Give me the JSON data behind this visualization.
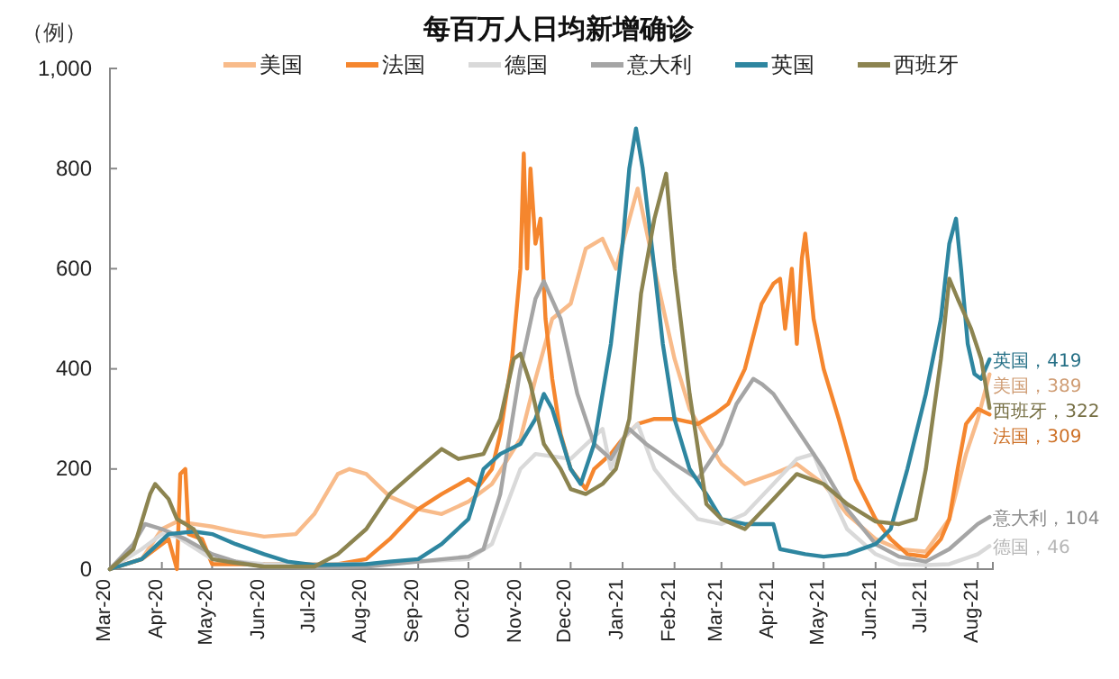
{
  "chart_data": {
    "type": "line",
    "title": "每百万人日均新增确诊",
    "ylabel": "（例）",
    "legend": "top",
    "grid": false,
    "line_style": "solid",
    "marker": "none",
    "xlim": [
      "2020-03-01",
      "2021-08-10"
    ],
    "xticks": [
      {
        "value": "2020-03-01",
        "label": "Mar-20"
      },
      {
        "value": "2020-04-01",
        "label": "Apr-20"
      },
      {
        "value": "2020-05-01",
        "label": "May-20"
      },
      {
        "value": "2020-06-01",
        "label": "Jun-20"
      },
      {
        "value": "2020-07-01",
        "label": "Jul-20"
      },
      {
        "value": "2020-08-01",
        "label": "Aug-20"
      },
      {
        "value": "2020-09-01",
        "label": "Sep-20"
      },
      {
        "value": "2020-10-01",
        "label": "Oct-20"
      },
      {
        "value": "2020-11-01",
        "label": "Nov-20"
      },
      {
        "value": "2020-12-01",
        "label": "Dec-20"
      },
      {
        "value": "2021-01-01",
        "label": "Jan-21"
      },
      {
        "value": "2021-02-01",
        "label": "Feb-21"
      },
      {
        "value": "2021-03-01",
        "label": "Mar-21"
      },
      {
        "value": "2021-04-01",
        "label": "Apr-21"
      },
      {
        "value": "2021-05-01",
        "label": "May-21"
      },
      {
        "value": "2021-06-01",
        "label": "Jun-21"
      },
      {
        "value": "2021-07-01",
        "label": "Jul-21"
      },
      {
        "value": "2021-08-01",
        "label": "Aug-21"
      }
    ],
    "ylim": [
      0,
      1000
    ],
    "yticks": [
      0,
      200,
      400,
      600,
      800,
      {
        "value": 1000,
        "label": "1,000"
      }
    ],
    "series": [
      {
        "name": "美国",
        "color": "#f8bb8a",
        "x": [
          "2020-03-01",
          "2020-03-20",
          "2020-04-01",
          "2020-04-10",
          "2020-05-01",
          "2020-05-15",
          "2020-06-01",
          "2020-06-20",
          "2020-07-01",
          "2020-07-15",
          "2020-07-22",
          "2020-08-01",
          "2020-08-15",
          "2020-09-01",
          "2020-09-15",
          "2020-10-01",
          "2020-10-15",
          "2020-11-01",
          "2020-11-10",
          "2020-11-20",
          "2020-12-01",
          "2020-12-10",
          "2020-12-20",
          "2020-12-28",
          "2021-01-10",
          "2021-01-20",
          "2021-02-01",
          "2021-02-10",
          "2021-02-20",
          "2021-03-01",
          "2021-03-15",
          "2021-04-01",
          "2021-04-15",
          "2021-05-01",
          "2021-05-15",
          "2021-06-01",
          "2021-06-15",
          "2021-07-01",
          "2021-07-15",
          "2021-07-25",
          "2021-08-01",
          "2021-08-08"
        ],
        "values": [
          0,
          20,
          80,
          95,
          85,
          75,
          65,
          70,
          110,
          190,
          200,
          190,
          145,
          120,
          110,
          135,
          170,
          260,
          380,
          500,
          530,
          640,
          660,
          600,
          760,
          600,
          420,
          320,
          260,
          210,
          170,
          190,
          210,
          170,
          110,
          60,
          40,
          35,
          100,
          230,
          300,
          389
        ]
      },
      {
        "name": "法国",
        "color": "#f5862e",
        "x": [
          "2020-03-01",
          "2020-03-20",
          "2020-04-05",
          "2020-04-10",
          "2020-04-12",
          "2020-04-15",
          "2020-04-17",
          "2020-04-25",
          "2020-05-01",
          "2020-06-01",
          "2020-07-15",
          "2020-08-01",
          "2020-08-15",
          "2020-09-01",
          "2020-09-15",
          "2020-10-01",
          "2020-10-07",
          "2020-10-15",
          "2020-10-20",
          "2020-10-27",
          "2020-11-01",
          "2020-11-03",
          "2020-11-05",
          "2020-11-07",
          "2020-11-10",
          "2020-11-13",
          "2020-11-16",
          "2020-11-20",
          "2020-11-25",
          "2020-12-01",
          "2020-12-10",
          "2020-12-15",
          "2020-12-25",
          "2021-01-01",
          "2021-01-10",
          "2021-01-20",
          "2021-02-01",
          "2021-02-15",
          "2021-02-25",
          "2021-03-05",
          "2021-03-15",
          "2021-03-25",
          "2021-04-01",
          "2021-04-05",
          "2021-04-08",
          "2021-04-12",
          "2021-04-15",
          "2021-04-18",
          "2021-04-20",
          "2021-04-25",
          "2021-05-01",
          "2021-05-10",
          "2021-05-20",
          "2021-06-01",
          "2021-06-10",
          "2021-06-20",
          "2021-07-01",
          "2021-07-10",
          "2021-07-15",
          "2021-07-20",
          "2021-07-25",
          "2021-08-01",
          "2021-08-08"
        ],
        "values": [
          0,
          20,
          60,
          0,
          190,
          200,
          70,
          60,
          10,
          10,
          10,
          20,
          60,
          120,
          150,
          180,
          165,
          200,
          270,
          420,
          600,
          830,
          600,
          800,
          650,
          700,
          500,
          380,
          270,
          200,
          160,
          200,
          230,
          260,
          290,
          300,
          300,
          290,
          310,
          330,
          400,
          530,
          570,
          580,
          480,
          600,
          450,
          620,
          670,
          500,
          400,
          300,
          180,
          100,
          60,
          30,
          25,
          60,
          100,
          200,
          290,
          320,
          309
        ]
      },
      {
        "name": "德国",
        "color": "#d9d9d9",
        "x": [
          "2020-03-01",
          "2020-03-20",
          "2020-04-01",
          "2020-04-10",
          "2020-05-01",
          "2020-06-01",
          "2020-08-01",
          "2020-10-01",
          "2020-10-15",
          "2020-11-01",
          "2020-11-10",
          "2020-12-01",
          "2020-12-20",
          "2020-12-25",
          "2021-01-01",
          "2021-01-10",
          "2021-01-20",
          "2021-02-01",
          "2021-02-15",
          "2021-03-01",
          "2021-03-15",
          "2021-04-01",
          "2021-04-15",
          "2021-04-25",
          "2021-05-01",
          "2021-05-15",
          "2021-06-01",
          "2021-06-15",
          "2021-07-01",
          "2021-07-15",
          "2021-08-01",
          "2021-08-08"
        ],
        "values": [
          0,
          40,
          70,
          65,
          20,
          10,
          10,
          20,
          50,
          200,
          230,
          220,
          280,
          200,
          260,
          290,
          200,
          150,
          100,
          90,
          110,
          170,
          220,
          230,
          180,
          80,
          30,
          10,
          8,
          10,
          30,
          46
        ]
      },
      {
        "name": "意大利",
        "color": "#a5a5a5",
        "x": [
          "2020-03-01",
          "2020-03-15",
          "2020-03-22",
          "2020-04-01",
          "2020-04-15",
          "2020-05-01",
          "2020-05-15",
          "2020-06-01",
          "2020-07-01",
          "2020-08-01",
          "2020-09-01",
          "2020-10-01",
          "2020-10-10",
          "2020-10-20",
          "2020-11-01",
          "2020-11-10",
          "2020-11-15",
          "2020-11-25",
          "2020-12-05",
          "2020-12-15",
          "2020-12-25",
          "2021-01-05",
          "2021-01-15",
          "2021-02-01",
          "2021-02-15",
          "2021-03-01",
          "2021-03-10",
          "2021-03-20",
          "2021-03-25",
          "2021-04-01",
          "2021-04-15",
          "2021-05-01",
          "2021-05-15",
          "2021-06-01",
          "2021-06-15",
          "2021-07-01",
          "2021-07-15",
          "2021-08-01",
          "2021-08-08"
        ],
        "values": [
          0,
          50,
          90,
          80,
          60,
          30,
          15,
          5,
          3,
          5,
          15,
          25,
          40,
          150,
          400,
          540,
          575,
          500,
          350,
          250,
          220,
          280,
          250,
          210,
          180,
          250,
          330,
          380,
          370,
          350,
          280,
          200,
          120,
          50,
          25,
          15,
          40,
          90,
          104
        ]
      },
      {
        "name": "英国",
        "color": "#2e86a0",
        "x": [
          "2020-03-01",
          "2020-03-20",
          "2020-04-05",
          "2020-04-20",
          "2020-05-01",
          "2020-05-15",
          "2020-06-01",
          "2020-06-15",
          "2020-07-01",
          "2020-08-01",
          "2020-08-15",
          "2020-09-01",
          "2020-09-15",
          "2020-10-01",
          "2020-10-10",
          "2020-10-20",
          "2020-11-01",
          "2020-11-10",
          "2020-11-15",
          "2020-11-20",
          "2020-12-01",
          "2020-12-07",
          "2020-12-15",
          "2020-12-25",
          "2021-01-01",
          "2021-01-05",
          "2021-01-09",
          "2021-01-13",
          "2021-01-20",
          "2021-01-25",
          "2021-02-01",
          "2021-02-10",
          "2021-02-20",
          "2021-03-01",
          "2021-03-15",
          "2021-04-01",
          "2021-04-05",
          "2021-04-20",
          "2021-05-01",
          "2021-05-15",
          "2021-06-01",
          "2021-06-10",
          "2021-06-20",
          "2021-07-01",
          "2021-07-10",
          "2021-07-15",
          "2021-07-19",
          "2021-07-22",
          "2021-07-26",
          "2021-07-30",
          "2021-08-03",
          "2021-08-08"
        ],
        "values": [
          0,
          20,
          70,
          75,
          70,
          50,
          30,
          15,
          8,
          10,
          15,
          20,
          50,
          100,
          200,
          230,
          250,
          300,
          350,
          320,
          200,
          170,
          250,
          450,
          650,
          800,
          880,
          800,
          600,
          450,
          300,
          200,
          150,
          100,
          90,
          90,
          40,
          30,
          25,
          30,
          50,
          80,
          200,
          350,
          500,
          650,
          700,
          600,
          450,
          390,
          380,
          419
        ]
      },
      {
        "name": "西班牙",
        "color": "#8c8450",
        "x": [
          "2020-03-01",
          "2020-03-15",
          "2020-03-25",
          "2020-03-28",
          "2020-04-05",
          "2020-04-10",
          "2020-04-15",
          "2020-04-20",
          "2020-04-25",
          "2020-05-01",
          "2020-05-10",
          "2020-06-01",
          "2020-07-01",
          "2020-07-15",
          "2020-08-01",
          "2020-08-15",
          "2020-09-01",
          "2020-09-15",
          "2020-09-25",
          "2020-10-10",
          "2020-10-20",
          "2020-10-28",
          "2020-11-01",
          "2020-11-07",
          "2020-11-15",
          "2020-11-25",
          "2020-12-01",
          "2020-12-10",
          "2020-12-20",
          "2020-12-28",
          "2021-01-05",
          "2021-01-12",
          "2021-01-20",
          "2021-01-27",
          "2021-02-01",
          "2021-02-10",
          "2021-02-20",
          "2021-03-01",
          "2021-03-15",
          "2021-04-01",
          "2021-04-15",
          "2021-05-01",
          "2021-05-15",
          "2021-06-01",
          "2021-06-15",
          "2021-06-25",
          "2021-07-01",
          "2021-07-10",
          "2021-07-15",
          "2021-07-20",
          "2021-07-28",
          "2021-08-03",
          "2021-08-08"
        ],
        "values": [
          0,
          40,
          150,
          170,
          140,
          100,
          90,
          80,
          50,
          20,
          15,
          5,
          5,
          30,
          80,
          150,
          200,
          240,
          220,
          230,
          300,
          420,
          430,
          370,
          250,
          200,
          160,
          150,
          170,
          200,
          300,
          550,
          700,
          790,
          600,
          350,
          130,
          100,
          80,
          140,
          190,
          170,
          130,
          95,
          90,
          100,
          200,
          420,
          580,
          540,
          480,
          420,
          322
        ]
      }
    ],
    "annotations": [
      {
        "text": "美国，389",
        "x": "2021-08-08",
        "y": 389
      },
      {
        "text": "法国，309",
        "x": "2021-08-08",
        "y": 309
      },
      {
        "text": "德国，46",
        "x": "2021-08-08",
        "y": 46
      },
      {
        "text": "意大利，104",
        "x": "2021-08-08",
        "y": 104
      },
      {
        "text": "英国，419",
        "x": "2021-08-08",
        "y": 419
      },
      {
        "text": "西班牙，322",
        "x": "2021-08-08",
        "y": 322
      }
    ]
  }
}
